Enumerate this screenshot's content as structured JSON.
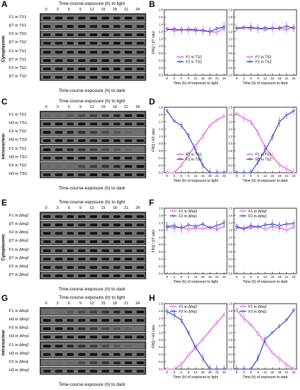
{
  "panels": [
    {
      "blot": {
        "letter": "A",
        "side_label": "Cytoplasmic",
        "top_title": "Time-course exposure (h) to light",
        "bottom_title": "Time-course exposure (h) to dark",
        "lanes": [
          "0",
          "3",
          "6",
          "9",
          "12",
          "15",
          "18",
          "21",
          "24"
        ],
        "group1": [
          "F1 in TS1",
          "βT in TS1",
          "F2 in TS2",
          "βT in TS2"
        ],
        "group2": [
          "F1 in TS1",
          "βT in TS1",
          "F2 in TS2",
          "βT in TS2"
        ]
      },
      "chart": {
        "letter": "B"
      }
    },
    {
      "blot": {
        "letter": "C",
        "side_label": "Intranuclear",
        "top_title": "Time-course exposure (h) to light",
        "bottom_title": "Time-course exposure (h) to dark",
        "lanes": [
          "0",
          "3",
          "6",
          "9",
          "12",
          "15",
          "18",
          "21",
          "24"
        ],
        "group1": [
          "F1 in TS1",
          "H3 in TS1",
          "F2 in TS2",
          "H3 in TS2"
        ],
        "group2": [
          "F1 in TS1",
          "H3 in TS1",
          "F2 in TS2",
          "H3 in TS2"
        ]
      },
      "chart": {
        "letter": "D"
      }
    },
    {
      "blot": {
        "letter": "E",
        "side_label": "Cytoplasmic",
        "top_title": "Time-course exposure (h) to light",
        "bottom_title": "Time-course exposure (h) to dark",
        "lanes": [
          "0",
          "3",
          "6",
          "9",
          "12",
          "15",
          "18",
          "21",
          "24"
        ],
        "group1": [
          "F1 in Δfrq2",
          "βT in Δfrq2",
          "F2 in Δfrq1",
          "βT in Δfrq1"
        ],
        "group2": [
          "F1 in Δfrq2",
          "βT in Δfrq2",
          "F2 in Δfrq1",
          "βT in Δfrq1"
        ]
      },
      "chart": {
        "letter": "F"
      }
    },
    {
      "blot": {
        "letter": "G",
        "side_label": "Intranuclear",
        "top_title": "Time-course exposure (h) to light",
        "bottom_title": "Time-course exposure (h) to dark",
        "lanes": [
          "0",
          "3",
          "6",
          "9",
          "12",
          "15",
          "18",
          "21",
          "24"
        ],
        "group1": [
          "F1 in Δfrq2",
          "H3 in Δfrq2",
          "F2 in Δfrq1",
          "H3 in Δfrq1"
        ],
        "group2": [
          "F1 in Δfrq2",
          "H3 in Δfrq2",
          "F2 in Δfrq1",
          "H3 in Δfrq1"
        ]
      },
      "chart": {
        "letter": "H"
      }
    }
  ],
  "colors": {
    "series1": "#e040e0",
    "series2": "#1a2fc8"
  },
  "chart_data": [
    {
      "type": "line",
      "panel": "B",
      "ylabel": "FRQ / βT ratio",
      "xlabel": "Time (h) of exposure to light",
      "x": [
        0,
        3,
        6,
        9,
        12,
        15,
        18,
        21,
        24
      ],
      "ylim": [
        0,
        1.8
      ],
      "yticks": [
        0.0,
        0.2,
        0.4,
        0.6,
        0.8,
        1.0,
        1.2,
        1.4,
        1.6,
        1.8
      ],
      "series": [
        {
          "name": "F1 in TS1",
          "values": [
            1.28,
            1.22,
            1.25,
            1.24,
            1.22,
            1.24,
            1.2,
            1.18,
            1.3
          ]
        },
        {
          "name": "F2 in TS2",
          "values": [
            1.25,
            1.27,
            1.24,
            1.26,
            1.25,
            1.22,
            1.2,
            1.28,
            1.33
          ]
        }
      ]
    },
    {
      "type": "line",
      "panel": "B",
      "ylabel": "",
      "xlabel": "Time (h) of exposure to dark",
      "x": [
        0,
        3,
        6,
        9,
        12,
        15,
        18,
        21,
        24
      ],
      "ylim": [
        0,
        1.8
      ],
      "yticks": [
        0.0,
        0.2,
        0.4,
        0.6,
        0.8,
        1.0,
        1.2,
        1.4,
        1.6,
        1.8
      ],
      "series": [
        {
          "name": "F1 in TS1",
          "values": [
            1.3,
            1.32,
            1.28,
            1.3,
            1.24,
            1.3,
            1.28,
            1.26,
            1.3
          ]
        },
        {
          "name": "F2 in TS2",
          "values": [
            1.28,
            1.3,
            1.32,
            1.28,
            1.3,
            1.28,
            1.3,
            1.34,
            1.3
          ]
        }
      ]
    },
    {
      "type": "line",
      "panel": "D",
      "ylabel": "FRQ / H3 ratio",
      "xlabel": "Time (h) of exposure to light",
      "x": [
        0,
        3,
        6,
        9,
        12,
        15,
        18,
        21,
        24
      ],
      "ylim": [
        0,
        1.8
      ],
      "yticks": [
        0.0,
        0.2,
        0.4,
        0.6,
        0.8,
        1.0,
        1.2,
        1.4,
        1.6,
        1.8
      ],
      "series": [
        {
          "name": "F1 in TS1",
          "values": [
            0.0,
            0.0,
            0.2,
            0.5,
            0.75,
            1.0,
            1.3,
            1.45,
            1.55
          ]
        },
        {
          "name": "F2 in TS2",
          "values": [
            1.7,
            1.42,
            1.3,
            1.02,
            0.62,
            0.2,
            0.0,
            0.0,
            0.0
          ]
        }
      ]
    },
    {
      "type": "line",
      "panel": "D",
      "ylabel": "",
      "xlabel": "Time (h) of exposure to dark",
      "x": [
        0,
        3,
        6,
        9,
        12,
        15,
        18,
        21,
        24
      ],
      "ylim": [
        0,
        1.8
      ],
      "yticks": [
        0.0,
        0.2,
        0.4,
        0.6,
        0.8,
        1.0,
        1.2,
        1.4,
        1.6,
        1.8
      ],
      "series": [
        {
          "name": "F1 in TS1",
          "values": [
            1.62,
            1.5,
            1.4,
            1.1,
            0.7,
            0.45,
            0.22,
            0.1,
            0.0
          ]
        },
        {
          "name": "F2 in TS2",
          "values": [
            0.0,
            0.0,
            0.0,
            0.3,
            0.62,
            0.98,
            1.4,
            1.58,
            1.7
          ]
        }
      ]
    },
    {
      "type": "line",
      "panel": "F",
      "ylabel": "FRQ / βT ratio",
      "xlabel": "Time (h) of exposure to light",
      "x": [
        0,
        3,
        6,
        9,
        12,
        15,
        18,
        21,
        24
      ],
      "ylim": [
        0,
        1.8
      ],
      "yticks": [
        0.0,
        0.2,
        0.4,
        0.6,
        0.8,
        1.0,
        1.2,
        1.4,
        1.6,
        1.8
      ],
      "series": [
        {
          "name": "F1 in Δfrq2",
          "values": [
            1.28,
            1.26,
            1.28,
            1.22,
            1.26,
            1.24,
            1.27,
            1.22,
            1.3
          ]
        },
        {
          "name": "F2 in Δfrq1",
          "values": [
            1.3,
            1.32,
            1.25,
            1.34,
            1.3,
            1.36,
            1.26,
            1.32,
            1.4
          ]
        }
      ]
    },
    {
      "type": "line",
      "panel": "F",
      "ylabel": "",
      "xlabel": "Time (h) of exposure to dark",
      "x": [
        0,
        3,
        6,
        9,
        12,
        15,
        18,
        21,
        24
      ],
      "ylim": [
        0,
        1.8
      ],
      "yticks": [
        0.0,
        0.2,
        0.4,
        0.6,
        0.8,
        1.0,
        1.2,
        1.4,
        1.6,
        1.8
      ],
      "series": [
        {
          "name": "F1 in Δfrq2",
          "values": [
            1.26,
            1.24,
            1.26,
            1.3,
            1.22,
            1.3,
            1.26,
            1.2,
            1.28
          ]
        },
        {
          "name": "F2 in Δfrq1",
          "values": [
            1.3,
            1.24,
            1.32,
            1.28,
            1.34,
            1.36,
            1.32,
            1.36,
            1.38
          ]
        }
      ]
    },
    {
      "type": "line",
      "panel": "H",
      "ylabel": "FRQ / H3 ratio",
      "xlabel": "Time (h) of exposure to light",
      "x": [
        0,
        3,
        6,
        9,
        12,
        15,
        18,
        21,
        24
      ],
      "ylim": [
        0,
        1.8
      ],
      "yticks": [
        0.0,
        0.2,
        0.4,
        0.6,
        0.8,
        1.0,
        1.2,
        1.4,
        1.6,
        1.8
      ],
      "series": [
        {
          "name": "F1 in Δfrq2",
          "values": [
            0.0,
            0.0,
            0.12,
            0.38,
            0.6,
            0.82,
            1.05,
            1.28,
            1.5
          ]
        },
        {
          "name": "F2 in Δfrq1",
          "values": [
            1.58,
            1.48,
            1.35,
            1.0,
            0.6,
            0.3,
            0.0,
            0.0,
            0.0
          ]
        }
      ]
    },
    {
      "type": "line",
      "panel": "H",
      "ylabel": "",
      "xlabel": "Time (h) of exposure to dark",
      "x": [
        0,
        3,
        6,
        9,
        12,
        15,
        18,
        21,
        24
      ],
      "ylim": [
        0,
        1.8
      ],
      "yticks": [
        0.0,
        0.2,
        0.4,
        0.6,
        0.8,
        1.0,
        1.2,
        1.4,
        1.6,
        1.8
      ],
      "series": [
        {
          "name": "F1 in Δfrq2",
          "values": [
            1.62,
            1.4,
            1.22,
            0.98,
            0.72,
            0.45,
            0.28,
            0.12,
            0.0
          ]
        },
        {
          "name": "F2 in Δfrq1",
          "values": [
            0.0,
            0.0,
            0.0,
            0.3,
            0.82,
            1.0,
            1.18,
            1.35,
            1.62
          ]
        }
      ]
    }
  ]
}
